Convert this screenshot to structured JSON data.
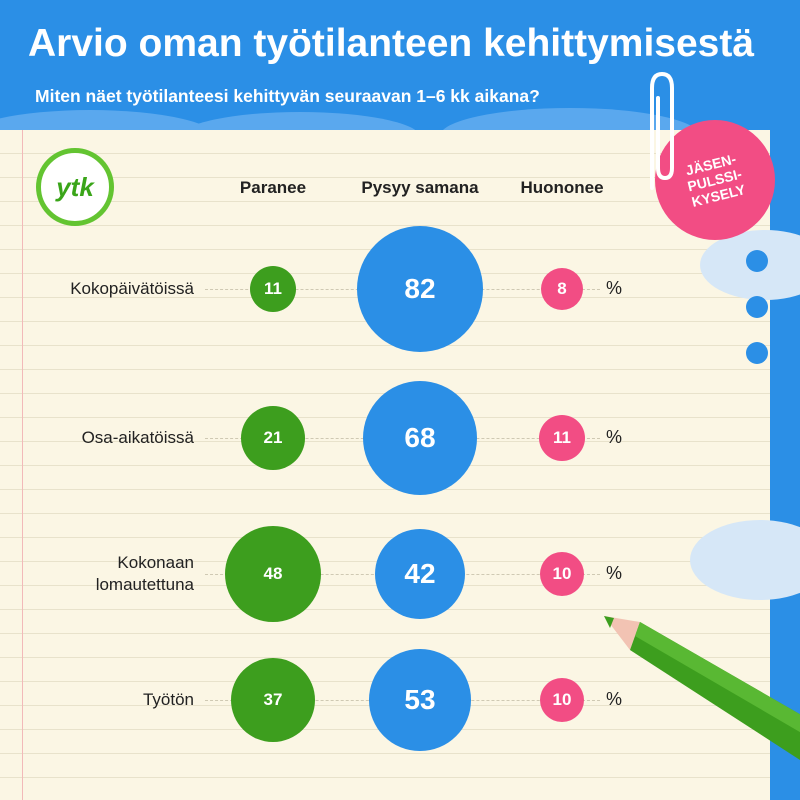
{
  "header": {
    "title": "Arvio oman työtilanteen kehittymisestä",
    "subtitle": "Miten näet työtilanteesi kehittyvän seuraavan 1–6 kk aikana?"
  },
  "logo": {
    "text": "ytk"
  },
  "badge": {
    "text": "JÄSEN-\nPULSSI-\nKYSELY"
  },
  "colors": {
    "blue": "#2b8fe6",
    "green": "#3d9e1e",
    "pink": "#f24d84",
    "paper": "#fbf6e4"
  },
  "chart_data": {
    "type": "bubble",
    "columns": [
      "Paranee",
      "Pysyy samana",
      "Huononee"
    ],
    "unit": "%",
    "rows": [
      {
        "label": "Kokopäivätöissä",
        "values": [
          11,
          82,
          8
        ]
      },
      {
        "label": "Osa-aikatöissä",
        "values": [
          21,
          68,
          11
        ]
      },
      {
        "label": "Kokonaan\nlomautettuna",
        "values": [
          48,
          42,
          10
        ]
      },
      {
        "label": "Työtön",
        "values": [
          37,
          53,
          10
        ]
      }
    ],
    "series": [
      {
        "name": "Paranee",
        "values": [
          11,
          21,
          48,
          37
        ]
      },
      {
        "name": "Pysyy samana",
        "values": [
          82,
          68,
          42,
          53
        ]
      },
      {
        "name": "Huononee",
        "values": [
          8,
          11,
          10,
          10
        ]
      }
    ]
  }
}
